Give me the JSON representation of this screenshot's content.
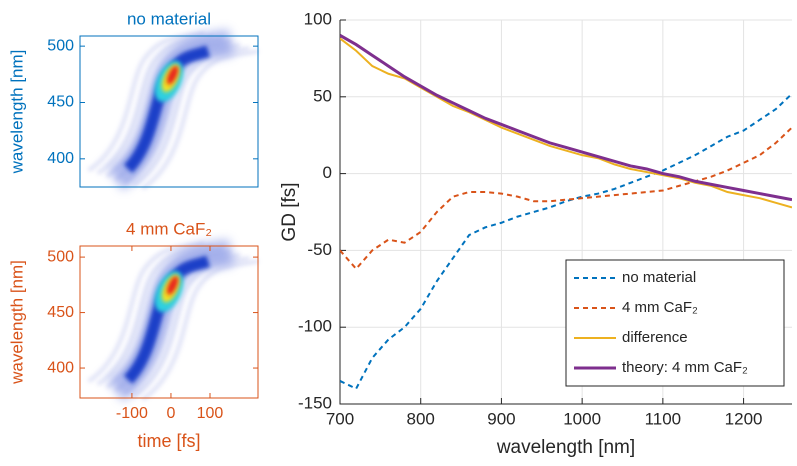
{
  "chart_data": [
    {
      "type": "heatmap",
      "title": "no material",
      "ylabel": "wavelength [nm]",
      "color": "#0072bd",
      "xlim": [
        -233,
        223
      ],
      "ylim": [
        375,
        509
      ],
      "yticks": [
        400,
        450,
        500
      ]
    },
    {
      "type": "heatmap",
      "title": "4 mm CaF₂",
      "ylabel": "wavelength [nm]",
      "xlabel": "time [fs]",
      "color": "#d95319",
      "xlim": [
        -233,
        223
      ],
      "xticks": [
        -100,
        0,
        100
      ],
      "ylim": [
        373,
        510
      ],
      "yticks": [
        400,
        450,
        500
      ]
    },
    {
      "type": "line",
      "xlabel": "wavelength [nm]",
      "ylabel": "GD [fs]",
      "xlim": [
        700,
        1260
      ],
      "xticks": [
        700,
        800,
        900,
        1000,
        1100,
        1200
      ],
      "ylim": [
        -150,
        100
      ],
      "yticks": [
        -150,
        -100,
        -50,
        0,
        50,
        100
      ],
      "grid": true,
      "legend": "lower right",
      "x": [
        700,
        720,
        740,
        760,
        780,
        800,
        820,
        840,
        860,
        880,
        900,
        920,
        940,
        960,
        980,
        1000,
        1020,
        1040,
        1060,
        1080,
        1100,
        1120,
        1140,
        1160,
        1180,
        1200,
        1220,
        1240,
        1260
      ],
      "series": [
        {
          "name": "no material",
          "color": "#0072bd",
          "style": "dashed",
          "values": [
            -135,
            -140,
            -120,
            -108,
            -100,
            -88,
            -70,
            -55,
            -40,
            -35,
            -32,
            -28,
            -25,
            -22,
            -18,
            -15,
            -13,
            -10,
            -6,
            -2,
            2,
            7,
            12,
            18,
            24,
            28,
            35,
            42,
            52
          ]
        },
        {
          "name": "4 mm CaF₂",
          "color": "#d95319",
          "style": "dashed",
          "values": [
            -50,
            -62,
            -50,
            -43,
            -45,
            -38,
            -25,
            -15,
            -12,
            -12,
            -13,
            -15,
            -18,
            -18,
            -17,
            -16,
            -15,
            -14,
            -13,
            -12,
            -11,
            -8,
            -5,
            -2,
            2,
            7,
            12,
            20,
            30
          ]
        },
        {
          "name": "difference",
          "color": "#edb120",
          "style": "solid",
          "values": [
            88,
            80,
            70,
            65,
            62,
            56,
            50,
            44,
            40,
            35,
            30,
            26,
            22,
            18,
            15,
            12,
            10,
            6,
            3,
            1,
            -1,
            -3,
            -6,
            -8,
            -12,
            -14,
            -16,
            -19,
            -22
          ]
        },
        {
          "name": "theory: 4 mm CaF₂",
          "color": "#7e2f8e",
          "style": "solid",
          "values": [
            90,
            84,
            77,
            70,
            63,
            57,
            51,
            46,
            41,
            36,
            32,
            28,
            24,
            20,
            17,
            14,
            11,
            8,
            5,
            3,
            0,
            -2,
            -5,
            -7,
            -9,
            -11,
            -13,
            -15,
            -17
          ]
        }
      ]
    }
  ]
}
